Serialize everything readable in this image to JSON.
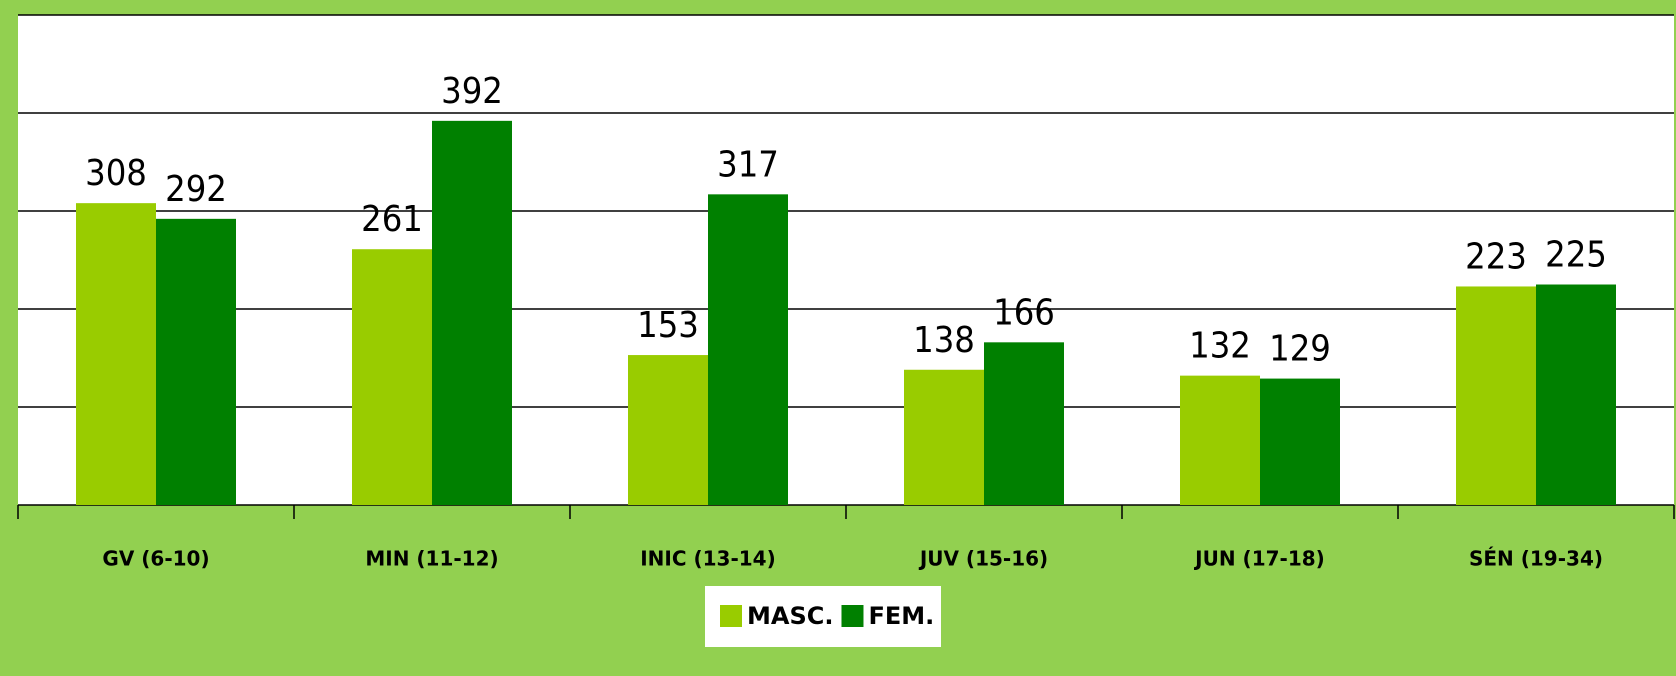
{
  "chart_data": {
    "type": "bar",
    "categories": [
      "GV (6-10)",
      "MIN (11-12)",
      "INIC (13-14)",
      "JUV (15-16)",
      "JUN (17-18)",
      "SÉN (19-34)"
    ],
    "series": [
      {
        "name": "MASC.",
        "color": "#99cc00",
        "values": [
          308,
          261,
          153,
          138,
          132,
          223
        ]
      },
      {
        "name": "FEM.",
        "color": "#008000",
        "values": [
          292,
          392,
          317,
          166,
          129,
          225
        ]
      }
    ],
    "ylim": [
      0,
      500
    ],
    "yticks": [
      0,
      100,
      200,
      300,
      400,
      500
    ],
    "grid": true,
    "legend": "bottom"
  }
}
